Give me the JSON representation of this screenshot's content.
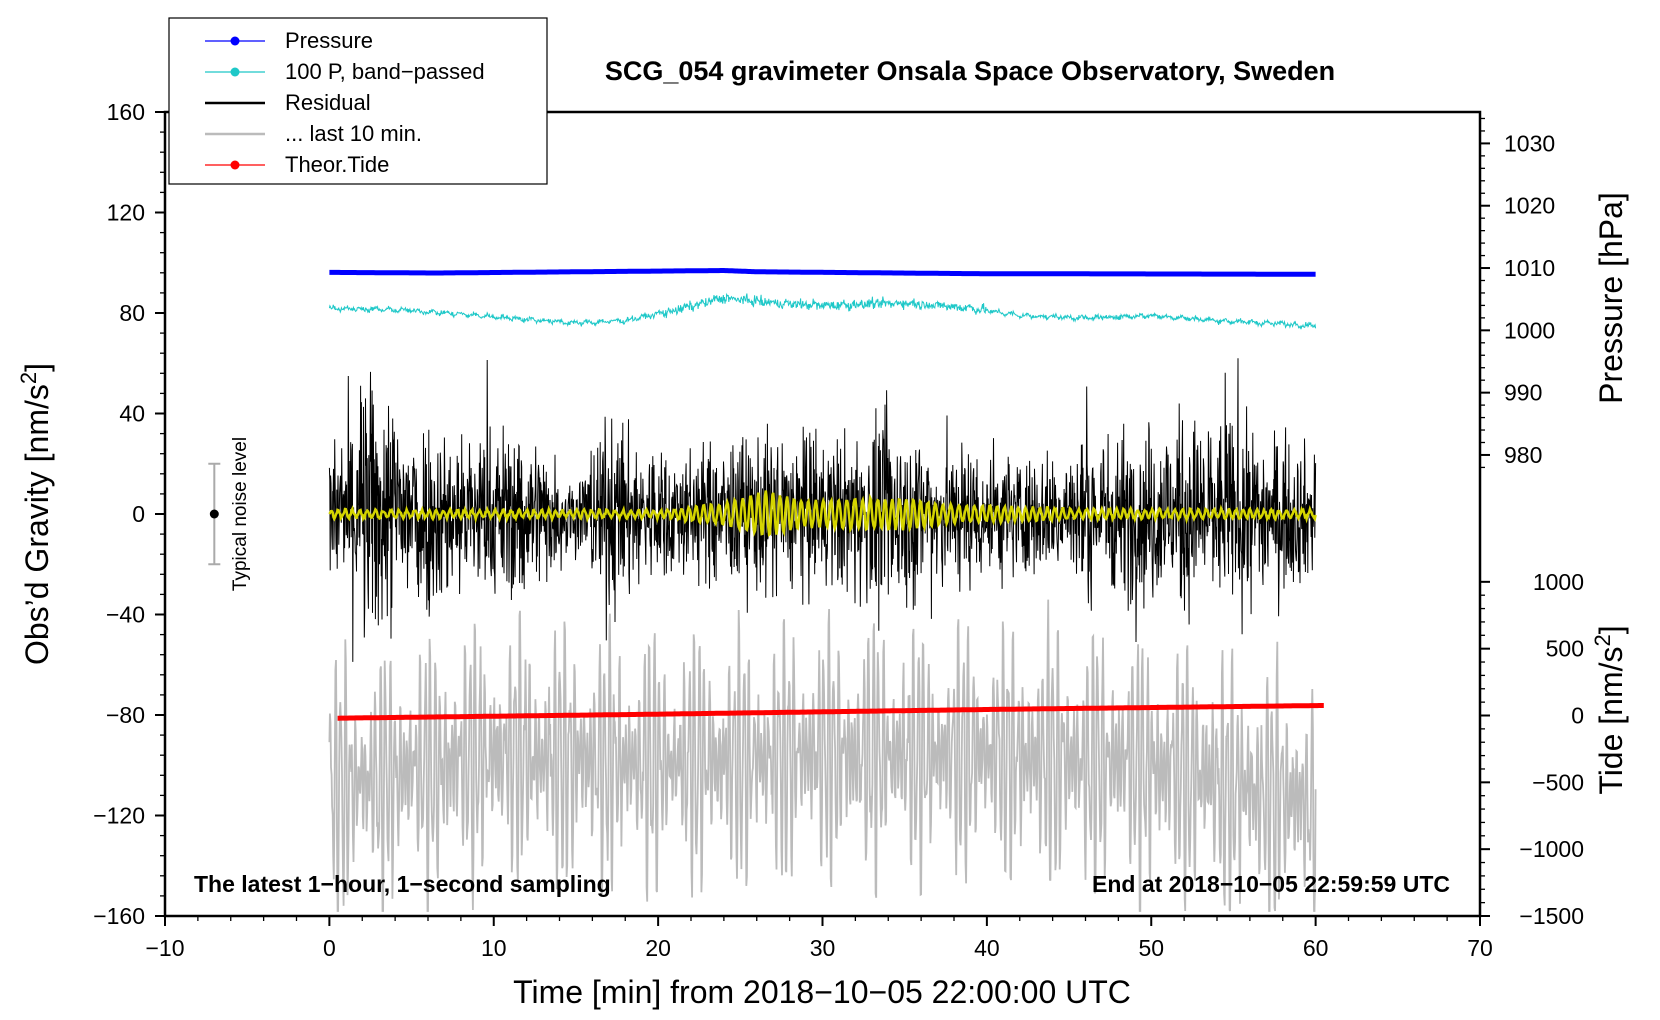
{
  "chart_data": {
    "type": "line",
    "title": "SCG_054 gravimeter Onsala Space Observatory, Sweden",
    "xlabel": "Time [min] from 2018−10−05 22:00:00 UTC",
    "ylabel": "Obs’d Gravity [nm/s",
    "ylabel_sup": "2",
    "ylabel_close": "]",
    "y2_top_label": "Pressure [hPa]",
    "y2_bottom_label": "Tide [nm/s",
    "y2_bottom_sup": "2",
    "y2_bottom_close": "]",
    "xlim": [
      -10,
      70
    ],
    "ylim": [
      -160,
      160
    ],
    "x_ticks": [
      -10,
      0,
      10,
      20,
      30,
      40,
      50,
      60,
      70
    ],
    "x_tick_labels": [
      "−10",
      "0",
      "10",
      "20",
      "30",
      "40",
      "50",
      "60",
      "70"
    ],
    "y_ticks": [
      -160,
      -120,
      -80,
      -40,
      0,
      40,
      80,
      120,
      160
    ],
    "y_tick_labels": [
      "−160",
      "−120",
      "−80",
      "−40",
      "0",
      "40",
      "80",
      "120",
      "160"
    ],
    "pressure_ticks": [
      980,
      990,
      1000,
      1010,
      1020,
      1030
    ],
    "pressure_tick_labels": [
      "980",
      "990",
      "1000",
      "1010",
      "1020",
      "1030"
    ],
    "pressure_map": {
      "hpa": [
        980,
        1030
      ],
      "gravity": [
        23.5,
        147.5
      ]
    },
    "tide_ticks": [
      -1500,
      -1000,
      -500,
      0,
      500,
      1000
    ],
    "tide_tick_labels": [
      "−1500",
      "−1000",
      "−500",
      "0",
      "500",
      "1000"
    ],
    "tide_map": {
      "tide": [
        -1500,
        1000
      ],
      "gravity": [
        -160,
        -27
      ]
    },
    "note_left": "The latest 1−hour, 1−second sampling",
    "note_right": "End at 2018−10−05 22:59:59 UTC",
    "noise_label": "Typical noise level",
    "noise_bar": {
      "x": -7,
      "center": 0,
      "half_range": 20
    },
    "legend": [
      {
        "label": "Pressure",
        "color": "#0000ff",
        "marker": true
      },
      {
        "label": "100 P, band−passed",
        "color": "#1ec8c8",
        "marker": true
      },
      {
        "label": "Residual",
        "color": "#000000",
        "marker": false
      },
      {
        "label": "... last 10 min.",
        "color": "#bbbbbb",
        "marker": false
      },
      {
        "label": "Theor.Tide",
        "color": "#ff0000",
        "marker": true
      }
    ],
    "series": [
      {
        "name": "Pressure",
        "color": "#0000ff",
        "x": [
          0,
          6.5,
          24,
          26,
          39,
          60
        ],
        "values": [
          1009.3,
          1009.2,
          1009.6,
          1009.4,
          1009.1,
          1009.0
        ]
      },
      {
        "name": "100 P, band−passed",
        "color": "#1ec8c8",
        "x": [
          0,
          5,
          11,
          15,
          18,
          21,
          24,
          27,
          30,
          35,
          39,
          42,
          46,
          50,
          54,
          57,
          60
        ],
        "values": [
          82,
          81,
          78,
          76,
          77,
          81,
          86,
          84,
          83,
          84,
          82,
          79,
          78,
          79,
          77,
          76,
          75
        ]
      },
      {
        "name": "Residual",
        "color": "#000000",
        "x": [
          0,
          2,
          4,
          8,
          12,
          15,
          17,
          19,
          22,
          25,
          28,
          31,
          34,
          37,
          40,
          43,
          46,
          49,
          52,
          55,
          58,
          60
        ],
        "amplitude": [
          22,
          55,
          45,
          32,
          35,
          15,
          40,
          28,
          25,
          30,
          33,
          30,
          38,
          30,
          28,
          22,
          30,
          34,
          38,
          36,
          30,
          25
        ]
      },
      {
        "name": "... last 10 min.",
        "color": "#bbbbbb",
        "x": [
          0,
          10,
          20,
          30,
          40,
          50,
          60
        ],
        "values": [
          -110,
          -95,
          -100,
          -95,
          -95,
          -100,
          -115
        ],
        "amplitude": 45
      },
      {
        "name": "Theor.Tide",
        "color": "#ff0000",
        "x": [
          0.5,
          20,
          40,
          60.5
        ],
        "values": [
          -20,
          10,
          45,
          75
        ]
      },
      {
        "name": "Residual, smoothed",
        "color": "#d4d400",
        "x": [
          0,
          20,
          24,
          26.5,
          29,
          32,
          35,
          38,
          45,
          60
        ],
        "amplitude": [
          1.5,
          1.5,
          4,
          9,
          5,
          6,
          6,
          3.5,
          2,
          1.5
        ]
      }
    ]
  }
}
